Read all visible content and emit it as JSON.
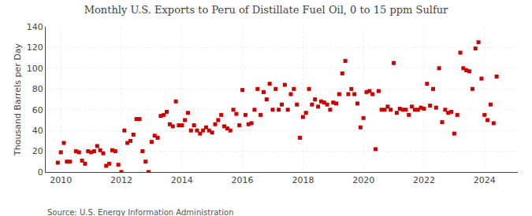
{
  "chart_data": {
    "type": "scatter",
    "title": "Monthly U.S. Exports to Peru of Distillate Fuel Oil, 0 to 15 ppm Sulfur",
    "ylabel": "Thousand Barrels per Day",
    "source": "Source: U.S. Energy Information Administration",
    "color": "#cc0000",
    "marker": "square",
    "grid": true,
    "xlim": [
      2009.5,
      2025.1
    ],
    "xticks": [
      2010,
      2012,
      2014,
      2016,
      2018,
      2020,
      2022,
      2024
    ],
    "ylim": [
      0,
      140
    ],
    "yticks": [
      0,
      20,
      40,
      60,
      80,
      100,
      120,
      140
    ],
    "x": [
      2009.9,
      2010.0,
      2010.1,
      2010.2,
      2010.3,
      2010.5,
      2010.6,
      2010.7,
      2010.8,
      2010.9,
      2011.0,
      2011.1,
      2011.2,
      2011.3,
      2011.4,
      2011.5,
      2011.6,
      2011.7,
      2011.8,
      2011.9,
      2012.0,
      2012.1,
      2012.2,
      2012.3,
      2012.4,
      2012.5,
      2012.6,
      2012.7,
      2012.8,
      2012.9,
      2013.0,
      2013.1,
      2013.2,
      2013.3,
      2013.4,
      2013.5,
      2013.6,
      2013.7,
      2013.8,
      2013.9,
      2014.0,
      2014.1,
      2014.2,
      2014.3,
      2014.4,
      2014.5,
      2014.6,
      2014.7,
      2014.8,
      2014.9,
      2015.0,
      2015.1,
      2015.2,
      2015.3,
      2015.4,
      2015.5,
      2015.6,
      2015.7,
      2015.8,
      2015.9,
      2016.0,
      2016.1,
      2016.2,
      2016.3,
      2016.4,
      2016.5,
      2016.6,
      2016.7,
      2016.8,
      2016.9,
      2017.0,
      2017.1,
      2017.2,
      2017.3,
      2017.4,
      2017.5,
      2017.6,
      2017.7,
      2017.8,
      2017.9,
      2018.0,
      2018.1,
      2018.2,
      2018.3,
      2018.4,
      2018.5,
      2018.6,
      2018.7,
      2018.8,
      2018.9,
      2019.0,
      2019.1,
      2019.2,
      2019.3,
      2019.4,
      2019.5,
      2019.6,
      2019.7,
      2019.8,
      2019.9,
      2020.0,
      2020.1,
      2020.2,
      2020.3,
      2020.4,
      2020.5,
      2020.6,
      2020.7,
      2020.8,
      2020.9,
      2021.0,
      2021.1,
      2021.2,
      2021.3,
      2021.4,
      2021.5,
      2021.6,
      2021.7,
      2021.8,
      2021.9,
      2022.0,
      2022.1,
      2022.2,
      2022.3,
      2022.4,
      2022.5,
      2022.6,
      2022.7,
      2022.8,
      2022.9,
      2023.0,
      2023.1,
      2023.2,
      2023.3,
      2023.4,
      2023.5,
      2023.6,
      2023.7,
      2023.8,
      2023.9,
      2024.0,
      2024.1,
      2024.2,
      2024.3,
      2024.4
    ],
    "values": [
      9,
      19,
      28,
      10,
      10,
      20,
      19,
      11,
      8,
      20,
      19,
      20,
      25,
      21,
      18,
      6,
      8,
      21,
      20,
      7,
      0,
      40,
      28,
      30,
      36,
      51,
      51,
      20,
      10,
      0,
      29,
      35,
      33,
      54,
      55,
      58,
      46,
      44,
      68,
      45,
      45,
      50,
      57,
      40,
      45,
      40,
      37,
      40,
      43,
      40,
      38,
      46,
      50,
      55,
      44,
      42,
      40,
      60,
      56,
      45,
      79,
      55,
      46,
      47,
      60,
      80,
      55,
      77,
      70,
      85,
      60,
      80,
      60,
      65,
      84,
      60,
      75,
      80,
      65,
      33,
      53,
      57,
      80,
      65,
      70,
      63,
      68,
      67,
      65,
      60,
      67,
      66,
      75,
      95,
      107,
      75,
      80,
      75,
      66,
      43,
      52,
      77,
      78,
      75,
      22,
      78,
      60,
      60,
      63,
      60,
      105,
      57,
      61,
      60,
      60,
      55,
      63,
      60,
      60,
      62,
      61,
      85,
      64,
      80,
      62,
      100,
      48,
      60,
      57,
      58,
      37,
      55,
      115,
      100,
      98,
      97,
      80,
      119,
      125,
      90,
      55,
      50,
      65,
      47,
      92
    ]
  }
}
